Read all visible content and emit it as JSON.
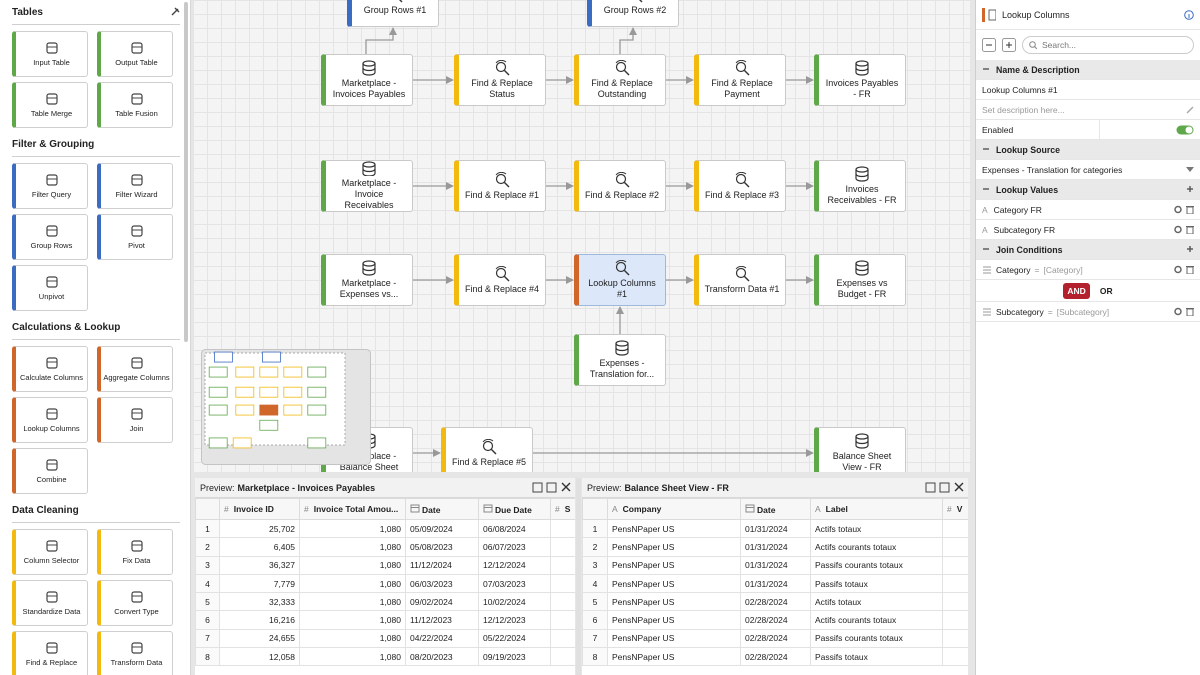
{
  "sidebar": {
    "sections": [
      {
        "title": "Tables",
        "color": "#5fa84a",
        "tools": [
          "Input Table",
          "Output Table",
          "Table Merge",
          "Table Fusion"
        ]
      },
      {
        "title": "Filter & Grouping",
        "color": "#3b6cc2",
        "tools": [
          "Filter Query",
          "Filter Wizard",
          "Group Rows",
          "Pivot",
          "Unpivot"
        ]
      },
      {
        "title": "Calculations & Lookup",
        "color": "#d0662a",
        "tools": [
          "Calculate Columns",
          "Aggregate Columns",
          "Lookup Columns",
          "Join",
          "Combine"
        ]
      },
      {
        "title": "Data Cleaning",
        "color": "#f2b90f",
        "tools": [
          "Column Selector",
          "Fix Data",
          "Standardize Data",
          "Convert Type",
          "Find & Replace",
          "Transform Data"
        ]
      }
    ]
  },
  "canvas": {
    "nodes": [
      {
        "label": "Group Rows #1",
        "color": "#3b6cc2"
      },
      {
        "label": "Group Rows #2",
        "color": "#3b6cc2"
      },
      {
        "label": "Marketplace - Invoices Payables",
        "color": "#5fa84a"
      },
      {
        "label": "Find & Replace Status",
        "color": "#f2b90f"
      },
      {
        "label": "Find & Replace Outstanding",
        "color": "#f2b90f"
      },
      {
        "label": "Find & Replace Payment",
        "color": "#f2b90f"
      },
      {
        "label": "Invoices Payables - FR",
        "color": "#5fa84a"
      },
      {
        "label": "Marketplace - Invoice Receivables",
        "color": "#5fa84a"
      },
      {
        "label": "Find & Replace #1",
        "color": "#f2b90f"
      },
      {
        "label": "Find & Replace #2",
        "color": "#f2b90f"
      },
      {
        "label": "Find & Replace #3",
        "color": "#f2b90f"
      },
      {
        "label": "Invoices Receivables - FR",
        "color": "#5fa84a"
      },
      {
        "label": "Marketplace - Expenses vs...",
        "color": "#5fa84a"
      },
      {
        "label": "Find & Replace #4",
        "color": "#f2b90f"
      },
      {
        "label": "Lookup Columns #1",
        "color": "#d0662a",
        "selected": true
      },
      {
        "label": "Transform Data #1",
        "color": "#f2b90f"
      },
      {
        "label": "Expenses vs Budget - FR",
        "color": "#5fa84a"
      },
      {
        "label": "Expenses - Translation for...",
        "color": "#5fa84a"
      },
      {
        "label": "Marketplace - Balance Sheet",
        "color": "#5fa84a"
      },
      {
        "label": "Find & Replace #5",
        "color": "#f2b90f"
      },
      {
        "label": "Balance Sheet View - FR",
        "color": "#5fa84a"
      }
    ]
  },
  "previews": [
    {
      "label": "Preview:",
      "title": "Marketplace - Invoices Payables",
      "columns": [
        {
          "name": "Invoice ID",
          "icon": "#"
        },
        {
          "name": "Invoice Total Amou...",
          "icon": "#"
        },
        {
          "name": "Date",
          "type": "date"
        },
        {
          "name": "Due Date",
          "type": "date"
        },
        {
          "name": "S",
          "icon": "#"
        }
      ],
      "rows": [
        [
          "1",
          "25,702",
          "1,080",
          "05/09/2024",
          "06/08/2024"
        ],
        [
          "2",
          "6,405",
          "1,080",
          "05/08/2023",
          "06/07/2023"
        ],
        [
          "3",
          "36,327",
          "1,080",
          "11/12/2024",
          "12/12/2024"
        ],
        [
          "4",
          "7,779",
          "1,080",
          "06/03/2023",
          "07/03/2023"
        ],
        [
          "5",
          "32,333",
          "1,080",
          "09/02/2024",
          "10/02/2024"
        ],
        [
          "6",
          "16,216",
          "1,080",
          "11/12/2023",
          "12/12/2023"
        ],
        [
          "7",
          "24,655",
          "1,080",
          "04/22/2024",
          "05/22/2024"
        ],
        [
          "8",
          "12,058",
          "1,080",
          "08/20/2023",
          "09/19/2023"
        ]
      ]
    },
    {
      "label": "Preview:",
      "title": "Balance Sheet View - FR",
      "columns": [
        {
          "name": "Company",
          "icon": "A"
        },
        {
          "name": "Date",
          "type": "date"
        },
        {
          "name": "Label",
          "icon": "A"
        },
        {
          "name": "V",
          "icon": "#"
        }
      ],
      "rows": [
        [
          "1",
          "PensNPaper US",
          "01/31/2024",
          "Actifs totaux"
        ],
        [
          "2",
          "PensNPaper US",
          "01/31/2024",
          "Actifs courants totaux"
        ],
        [
          "3",
          "PensNPaper US",
          "01/31/2024",
          "Passifs courants totaux"
        ],
        [
          "4",
          "PensNPaper US",
          "01/31/2024",
          "Passifs totaux"
        ],
        [
          "5",
          "PensNPaper US",
          "02/28/2024",
          "Actifs totaux"
        ],
        [
          "6",
          "PensNPaper US",
          "02/28/2024",
          "Actifs courants totaux"
        ],
        [
          "7",
          "PensNPaper US",
          "02/28/2024",
          "Passifs courants totaux"
        ],
        [
          "8",
          "PensNPaper US",
          "02/28/2024",
          "Passifs totaux"
        ]
      ]
    }
  ],
  "properties": {
    "title": "Lookup Columns",
    "search_placeholder": "Search...",
    "name_description": {
      "title": "Name & Description",
      "name": "Lookup Columns #1",
      "description_placeholder": "Set description here...",
      "enabled_label": "Enabled",
      "enabled": true
    },
    "lookup_source": {
      "title": "Lookup Source",
      "value": "Expenses - Translation for categories"
    },
    "lookup_values": {
      "title": "Lookup Values",
      "items": [
        {
          "icon": "A",
          "name": "Category FR"
        },
        {
          "icon": "A",
          "name": "Subcategory FR"
        }
      ]
    },
    "join_conditions": {
      "title": "Join Conditions",
      "items": [
        {
          "field": "Category",
          "operator": "=",
          "value": "[Category]"
        },
        {
          "field": "Subcategory",
          "operator": "=",
          "value": "[Subcategory]"
        }
      ],
      "logic": [
        "AND",
        "OR"
      ]
    }
  }
}
